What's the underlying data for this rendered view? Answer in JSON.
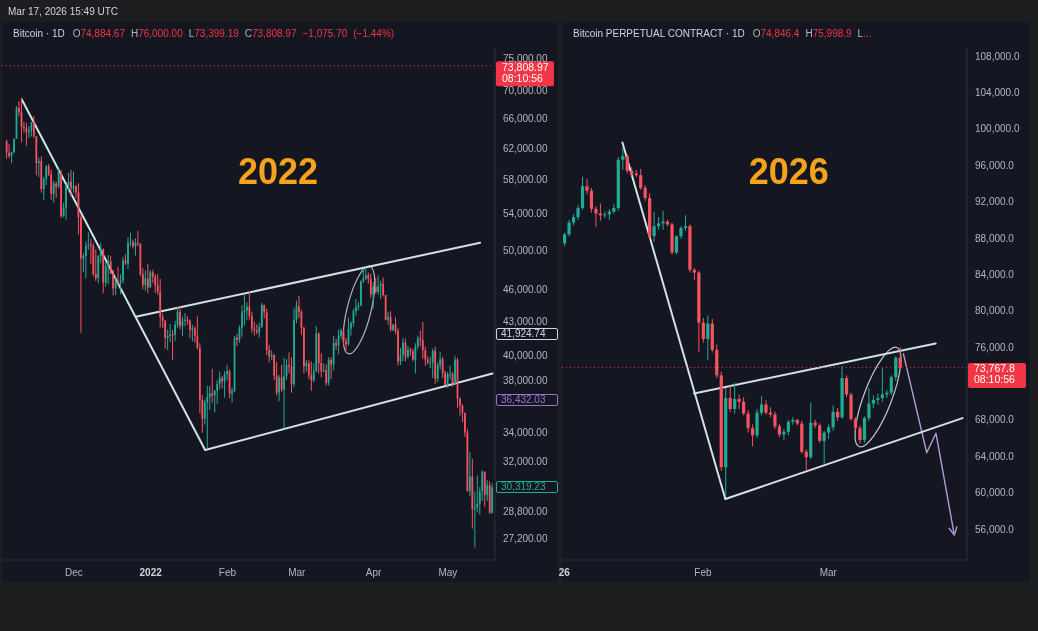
{
  "chart_data": [
    {
      "type": "candlestick",
      "title": "Bitcoin · 1D",
      "subtitle": "O74,884.67 H76,000.00 L73,399.19 C73,808.97 −1,075.70 (−1.44%)",
      "x": [
        "2021-11-04",
        "2021-11-05",
        "2021-11-06",
        "2021-11-07",
        "2021-11-08",
        "2021-11-09",
        "2021-11-10",
        "2021-11-11",
        "2021-11-12",
        "2021-11-13",
        "2021-11-14",
        "2021-11-15",
        "2021-11-16",
        "2021-11-17",
        "2021-11-18",
        "2021-11-19",
        "2021-11-20",
        "2021-11-21",
        "2021-11-22",
        "2021-11-23",
        "2021-11-24",
        "2021-11-25",
        "2021-11-26",
        "2021-11-27",
        "2021-11-28",
        "2021-11-29",
        "2021-11-30",
        "2021-12-01",
        "2021-12-02",
        "2021-12-03",
        "2021-12-04",
        "2021-12-05",
        "2021-12-06",
        "2021-12-07",
        "2021-12-08",
        "2021-12-09",
        "2021-12-10",
        "2021-12-11",
        "2021-12-12",
        "2021-12-13",
        "2021-12-14",
        "2021-12-15",
        "2021-12-16",
        "2021-12-17",
        "2021-12-18",
        "2021-12-19",
        "2021-12-20",
        "2021-12-21",
        "2021-12-22",
        "2021-12-23",
        "2021-12-24",
        "2021-12-25",
        "2021-12-26",
        "2021-12-27",
        "2021-12-28",
        "2021-12-29",
        "2021-12-30",
        "2021-12-31",
        "2022-01-01",
        "2022-01-02",
        "2022-01-03",
        "2022-01-04",
        "2022-01-05",
        "2022-01-06",
        "2022-01-07",
        "2022-01-08",
        "2022-01-09",
        "2022-01-10",
        "2022-01-11",
        "2022-01-12",
        "2022-01-13",
        "2022-01-14",
        "2022-01-15",
        "2022-01-16",
        "2022-01-17",
        "2022-01-18",
        "2022-01-19",
        "2022-01-20",
        "2022-01-21",
        "2022-01-22",
        "2022-01-23",
        "2022-01-24",
        "2022-01-25",
        "2022-01-26",
        "2022-01-27",
        "2022-01-28",
        "2022-01-29",
        "2022-01-30",
        "2022-01-31",
        "2022-02-01",
        "2022-02-02",
        "2022-02-03",
        "2022-02-04",
        "2022-02-05",
        "2022-02-06",
        "2022-02-07",
        "2022-02-08",
        "2022-02-09",
        "2022-02-10",
        "2022-02-11",
        "2022-02-12",
        "2022-02-13",
        "2022-02-14",
        "2022-02-15",
        "2022-02-16",
        "2022-02-17",
        "2022-02-18",
        "2022-02-19",
        "2022-02-20",
        "2022-02-21",
        "2022-02-22",
        "2022-02-23",
        "2022-02-24",
        "2022-02-25",
        "2022-02-26",
        "2022-02-27",
        "2022-02-28",
        "2022-03-01",
        "2022-03-02",
        "2022-03-03",
        "2022-03-04",
        "2022-03-05",
        "2022-03-06",
        "2022-03-07",
        "2022-03-08",
        "2022-03-09",
        "2022-03-10",
        "2022-03-11",
        "2022-03-12",
        "2022-03-13",
        "2022-03-14",
        "2022-03-15",
        "2022-03-16",
        "2022-03-17",
        "2022-03-18",
        "2022-03-19",
        "2022-03-20",
        "2022-03-21",
        "2022-03-22",
        "2022-03-23",
        "2022-03-24",
        "2022-03-25",
        "2022-03-26",
        "2022-03-27",
        "2022-03-28",
        "2022-03-29",
        "2022-03-30",
        "2022-03-31",
        "2022-04-01",
        "2022-04-02",
        "2022-04-03",
        "2022-04-04",
        "2022-04-05",
        "2022-04-06",
        "2022-04-07",
        "2022-04-08",
        "2022-04-09",
        "2022-04-10",
        "2022-04-11",
        "2022-04-12",
        "2022-04-13",
        "2022-04-14",
        "2022-04-15",
        "2022-04-16",
        "2022-04-17",
        "2022-04-18",
        "2022-04-19",
        "2022-04-20",
        "2022-04-21",
        "2022-04-22",
        "2022-04-23",
        "2022-04-24",
        "2022-04-25",
        "2022-04-26",
        "2022-04-27",
        "2022-04-28",
        "2022-04-29",
        "2022-04-30",
        "2022-05-01",
        "2022-05-02",
        "2022-05-03",
        "2022-05-04",
        "2022-05-05",
        "2022-05-06",
        "2022-05-07",
        "2022-05-08",
        "2022-05-09",
        "2022-05-10",
        "2022-05-11",
        "2022-05-12",
        "2022-05-13",
        "2022-05-14",
        "2022-05-15",
        "2022-05-16",
        "2022-05-17",
        "2022-05-18",
        "2022-05-19"
      ],
      "ohlc": [
        [
          62930,
          63120,
          60680,
          61440
        ],
        [
          61440,
          62600,
          60720,
          61010
        ],
        [
          61010,
          61600,
          60100,
          61530
        ],
        [
          61530,
          63300,
          61320,
          63270
        ],
        [
          63270,
          67790,
          63270,
          67530
        ],
        [
          67530,
          68530,
          66380,
          66940
        ],
        [
          66940,
          69000,
          62820,
          64880
        ],
        [
          64880,
          65600,
          64100,
          64780
        ],
        [
          64780,
          65460,
          62330,
          64150
        ],
        [
          64150,
          64990,
          63360,
          64380
        ],
        [
          64380,
          65550,
          63580,
          65500
        ],
        [
          65500,
          66400,
          63400,
          63600
        ],
        [
          63600,
          63600,
          58570,
          60110
        ],
        [
          60110,
          60830,
          58370,
          60360
        ],
        [
          60360,
          60950,
          56470,
          56900
        ],
        [
          56900,
          58360,
          55600,
          58100
        ],
        [
          58100,
          59850,
          57350,
          59700
        ],
        [
          59700,
          60000,
          58480,
          58700
        ],
        [
          58700,
          59270,
          55610,
          56300
        ],
        [
          56300,
          57860,
          55300,
          57570
        ],
        [
          57570,
          57800,
          55840,
          57180
        ],
        [
          57180,
          59400,
          57000,
          58960
        ],
        [
          58960,
          59200,
          53500,
          53730
        ],
        [
          53730,
          55280,
          53620,
          54720
        ],
        [
          54720,
          57440,
          53330,
          57270
        ],
        [
          57270,
          58870,
          56660,
          57810
        ],
        [
          57810,
          59250,
          56000,
          56990
        ],
        [
          56990,
          59050,
          56460,
          57230
        ],
        [
          57230,
          57380,
          55840,
          56510
        ],
        [
          56510,
          57600,
          51680,
          53600
        ],
        [
          53600,
          53860,
          42000,
          49150
        ],
        [
          49150,
          49700,
          47730,
          49400
        ],
        [
          49400,
          50940,
          47100,
          50440
        ],
        [
          50440,
          51940,
          50040,
          50590
        ],
        [
          50590,
          51200,
          48600,
          50470
        ],
        [
          50470,
          50800,
          47320,
          47550
        ],
        [
          47550,
          50100,
          46850,
          47140
        ],
        [
          47140,
          49490,
          46600,
          49390
        ],
        [
          49390,
          50800,
          48650,
          50100
        ],
        [
          50100,
          50200,
          45670,
          46700
        ],
        [
          46700,
          48700,
          46300,
          48340
        ],
        [
          48340,
          49500,
          46550,
          48860
        ],
        [
          48860,
          49430,
          47530,
          47630
        ],
        [
          47630,
          47990,
          45460,
          46130
        ],
        [
          46130,
          47370,
          45500,
          46830
        ],
        [
          46830,
          48300,
          46400,
          46680
        ],
        [
          46680,
          47540,
          45560,
          46910
        ],
        [
          46910,
          49330,
          46630,
          48940
        ],
        [
          48940,
          49580,
          48450,
          48630
        ],
        [
          48630,
          51380,
          48050,
          50820
        ],
        [
          50820,
          51880,
          50420,
          50850
        ],
        [
          50850,
          51160,
          50170,
          50430
        ],
        [
          50430,
          51280,
          49420,
          50800
        ],
        [
          50800,
          52090,
          50450,
          50720
        ],
        [
          50720,
          50720,
          47310,
          47540
        ],
        [
          47540,
          48140,
          46060,
          46460
        ],
        [
          46460,
          47900,
          45900,
          47120
        ],
        [
          47120,
          48550,
          45680,
          46220
        ],
        [
          46220,
          47950,
          46200,
          47720
        ],
        [
          47720,
          47990,
          46650,
          47290
        ],
        [
          47290,
          47570,
          45700,
          46430
        ],
        [
          46430,
          47510,
          45500,
          45830
        ],
        [
          45830,
          47070,
          42500,
          43430
        ],
        [
          43430,
          43750,
          42430,
          43080
        ],
        [
          43080,
          43150,
          40610,
          41560
        ],
        [
          41560,
          42300,
          40500,
          41730
        ],
        [
          41730,
          42790,
          41200,
          41860
        ],
        [
          41860,
          42250,
          39650,
          41820
        ],
        [
          41820,
          43100,
          41270,
          42740
        ],
        [
          42740,
          44350,
          42450,
          43920
        ],
        [
          43920,
          44460,
          42310,
          42590
        ],
        [
          42590,
          43450,
          41730,
          43100
        ],
        [
          43100,
          43800,
          42570,
          43180
        ],
        [
          43180,
          43480,
          42700,
          43110
        ],
        [
          43110,
          43200,
          41540,
          42250
        ],
        [
          42250,
          42700,
          41250,
          42380
        ],
        [
          42380,
          42580,
          41140,
          41740
        ],
        [
          41740,
          43500,
          40570,
          40680
        ],
        [
          40680,
          41100,
          35440,
          36450
        ],
        [
          36450,
          36840,
          34010,
          35030
        ],
        [
          35030,
          36500,
          34600,
          36280
        ],
        [
          36280,
          37550,
          32920,
          36680
        ],
        [
          36680,
          37550,
          35700,
          36960
        ],
        [
          36960,
          38920,
          36230,
          36810
        ],
        [
          36810,
          37230,
          35510,
          37160
        ],
        [
          37160,
          38000,
          36150,
          37710
        ],
        [
          37710,
          38720,
          37300,
          38170
        ],
        [
          38170,
          38360,
          37350,
          37920
        ],
        [
          37920,
          38740,
          36630,
          38480
        ],
        [
          38480,
          39270,
          38000,
          38740
        ],
        [
          38740,
          38860,
          36590,
          36950
        ],
        [
          36950,
          37390,
          36250,
          37150
        ],
        [
          37150,
          41730,
          37050,
          41570
        ],
        [
          41570,
          41910,
          40850,
          41380
        ],
        [
          41380,
          42650,
          41120,
          42410
        ],
        [
          42410,
          44500,
          41650,
          43840
        ],
        [
          43840,
          45490,
          42670,
          44040
        ],
        [
          44040,
          44800,
          43120,
          44380
        ],
        [
          44380,
          45820,
          43190,
          43510
        ],
        [
          43510,
          43920,
          42000,
          42390
        ],
        [
          42390,
          43000,
          41750,
          42210
        ],
        [
          42210,
          42760,
          41860,
          42050
        ],
        [
          42050,
          42880,
          41570,
          42540
        ],
        [
          42540,
          44750,
          42430,
          44540
        ],
        [
          44540,
          44580,
          43310,
          43870
        ],
        [
          43870,
          44200,
          40070,
          40510
        ],
        [
          40510,
          40950,
          39450,
          39970
        ],
        [
          39970,
          40480,
          39640,
          40080
        ],
        [
          40080,
          40150,
          38020,
          38370
        ],
        [
          38370,
          39490,
          36800,
          37020
        ],
        [
          37020,
          38430,
          36350,
          38240
        ],
        [
          38240,
          39270,
          37040,
          37250
        ],
        [
          37250,
          39840,
          34320,
          38330
        ],
        [
          38330,
          39730,
          38020,
          39220
        ],
        [
          39220,
          40300,
          38580,
          39110
        ],
        [
          39110,
          39880,
          37000,
          37700
        ],
        [
          37700,
          44230,
          37450,
          43160
        ],
        [
          43160,
          44950,
          42850,
          44420
        ],
        [
          44420,
          45400,
          43330,
          43890
        ],
        [
          43890,
          44100,
          41830,
          42450
        ],
        [
          42450,
          42530,
          38550,
          39150
        ],
        [
          39150,
          39640,
          38700,
          39400
        ],
        [
          39400,
          39690,
          38090,
          38420
        ],
        [
          38420,
          39550,
          37160,
          37990
        ],
        [
          37990,
          39360,
          37860,
          38730
        ],
        [
          38730,
          42590,
          38660,
          41940
        ],
        [
          41940,
          42050,
          38540,
          39420
        ],
        [
          39420,
          40240,
          38220,
          38730
        ],
        [
          38730,
          39360,
          38660,
          38810
        ],
        [
          38810,
          39310,
          37580,
          37780
        ],
        [
          37780,
          39920,
          37580,
          39670
        ],
        [
          39670,
          39870,
          38100,
          39280
        ],
        [
          39280,
          41720,
          38820,
          41110
        ],
        [
          41110,
          41480,
          40500,
          40920
        ],
        [
          40920,
          42330,
          40140,
          41750
        ],
        [
          41750,
          42400,
          41500,
          42200
        ],
        [
          42200,
          42300,
          40920,
          41260
        ],
        [
          41260,
          41540,
          40500,
          41000
        ],
        [
          41000,
          43360,
          40880,
          42360
        ],
        [
          42360,
          43020,
          41750,
          42880
        ],
        [
          42880,
          44220,
          42570,
          43960
        ],
        [
          43960,
          45100,
          43560,
          44350
        ],
        [
          44350,
          44800,
          44070,
          44500
        ],
        [
          44500,
          46920,
          44420,
          46820
        ],
        [
          46820,
          48100,
          46660,
          47130
        ],
        [
          47130,
          48190,
          46950,
          47430
        ],
        [
          47430,
          47700,
          46600,
          47060
        ],
        [
          47060,
          47600,
          45200,
          45530
        ],
        [
          45530,
          46720,
          44200,
          46280
        ],
        [
          46280,
          47210,
          45620,
          45810
        ],
        [
          45810,
          47440,
          45530,
          46410
        ],
        [
          46410,
          46880,
          45120,
          46580
        ],
        [
          46580,
          47200,
          45350,
          45500
        ],
        [
          45500,
          45500,
          43120,
          43170
        ],
        [
          43170,
          43900,
          42730,
          43440
        ],
        [
          43440,
          43970,
          42110,
          42250
        ],
        [
          42250,
          42790,
          42120,
          42750
        ],
        [
          42750,
          43420,
          41870,
          42150
        ],
        [
          42150,
          42410,
          39200,
          39530
        ],
        [
          39530,
          40690,
          39250,
          40080
        ],
        [
          40080,
          41560,
          39560,
          41150
        ],
        [
          41150,
          41500,
          39550,
          39940
        ],
        [
          39940,
          40870,
          39770,
          40550
        ],
        [
          40550,
          40710,
          40020,
          40380
        ],
        [
          40380,
          40600,
          39550,
          39680
        ],
        [
          39680,
          41100,
          38540,
          40800
        ],
        [
          40800,
          41760,
          40570,
          41500
        ],
        [
          41500,
          42200,
          40820,
          41360
        ],
        [
          41360,
          42980,
          39750,
          40480
        ],
        [
          40480,
          40800,
          39180,
          39710
        ],
        [
          39710,
          39980,
          39290,
          39450
        ],
        [
          39450,
          39930,
          39000,
          39450
        ],
        [
          39450,
          40620,
          38200,
          40430
        ],
        [
          40430,
          40800,
          37700,
          38110
        ],
        [
          38110,
          39470,
          37870,
          39240
        ],
        [
          39240,
          40370,
          38880,
          39740
        ],
        [
          39740,
          39920,
          38180,
          38600
        ],
        [
          38600,
          38800,
          37580,
          37630
        ],
        [
          37630,
          38680,
          37390,
          38470
        ],
        [
          38470,
          39170,
          38060,
          38520
        ],
        [
          38520,
          38650,
          37500,
          37720
        ],
        [
          37720,
          40020,
          37670,
          39690
        ],
        [
          39690,
          39850,
          35860,
          36550
        ],
        [
          36550,
          36660,
          35260,
          36010
        ],
        [
          36010,
          36140,
          34790,
          35470
        ],
        [
          35470,
          35500,
          33710,
          34040
        ],
        [
          34040,
          34300,
          30030,
          30080
        ],
        [
          30080,
          32660,
          29730,
          31000
        ],
        [
          31000,
          32190,
          27780,
          28940
        ],
        [
          28940,
          30030,
          26700,
          29030
        ],
        [
          29030,
          31080,
          28750,
          29290
        ],
        [
          29290,
          30340,
          28600,
          30080
        ],
        [
          30080,
          31420,
          29470,
          31330
        ],
        [
          31330,
          31330,
          29090,
          29830
        ],
        [
          29830,
          30780,
          29450,
          30450
        ],
        [
          30450,
          30700,
          28660,
          28720
        ],
        [
          28720,
          30550,
          28690,
          30319.23
        ]
      ],
      "series": [
        {
          "type": "line",
          "x": [
            "2021-11-10",
            "2022-01-23"
          ],
          "values": [
            68750,
            32800
          ],
          "color": "#cfe3e5"
        },
        {
          "type": "line",
          "x": [
            "2022-01-23",
            "2022-05-19"
          ],
          "values": [
            32800,
            38550
          ],
          "color": "#cfe3e5"
        },
        {
          "type": "line",
          "x": [
            "2021-12-26",
            "2022-05-14"
          ],
          "values": [
            43450,
            50800
          ],
          "color": "#cfe3e5"
        }
      ],
      "xlim": [
        "2021-11-02",
        "2022-05-20"
      ],
      "xticks": [
        {
          "value": "2021-12-01",
          "label": "Dec"
        },
        {
          "value": "2022-01-01",
          "label": "2022"
        },
        {
          "value": "2022-02-01",
          "label": "Feb"
        },
        {
          "value": "2022-03-01",
          "label": "Mar"
        },
        {
          "value": "2022-04-01",
          "label": "Apr"
        },
        {
          "value": "2022-05-01",
          "label": "May"
        }
      ],
      "ylim": [
        26000,
        76800
      ],
      "log": true,
      "yticks": [
        {
          "value": 75000,
          "label": "75,000.00"
        },
        {
          "value": 70000,
          "label": "70,000.00"
        },
        {
          "value": 66000,
          "label": "66,000.00"
        },
        {
          "value": 62000,
          "label": "62,000.00"
        },
        {
          "value": 58000,
          "label": "58,000.00"
        },
        {
          "value": 54000,
          "label": "54,000.00"
        },
        {
          "value": 50000,
          "label": "50,000.00"
        },
        {
          "value": 46000,
          "label": "46,000.00"
        },
        {
          "value": 43000,
          "label": "43,000.00"
        },
        {
          "value": 40000,
          "label": "40,000.00"
        },
        {
          "value": 38000,
          "label": "38,000.00"
        },
        {
          "value": 34000,
          "label": "34,000.00"
        },
        {
          "value": 32000,
          "label": "32,000.00"
        },
        {
          "value": 28800,
          "label": "28,800.00"
        },
        {
          "value": 27200,
          "label": "27,200.00"
        }
      ],
      "ref_lines": [
        {
          "axis": "y",
          "value": 73808.97,
          "label": "73,808.97\n08:10:56",
          "color": "#f23645",
          "line_style": "dotted"
        }
      ],
      "annotations": [
        "Mar 17, 2026 15:49 UTC",
        "2022",
        "41,924.74",
        "36,432.03",
        "30,319.23"
      ]
    },
    {
      "type": "candlestick",
      "title": "Bitcoin PERPETUAL CONTRACT · 1D",
      "subtitle": "O74,846.4 H75,998.9 L...",
      "x": [
        "2026-01-01",
        "2026-01-02",
        "2026-01-03",
        "2026-01-04",
        "2026-01-05",
        "2026-01-06",
        "2026-01-07",
        "2026-01-08",
        "2026-01-09",
        "2026-01-10",
        "2026-01-11",
        "2026-01-12",
        "2026-01-13",
        "2026-01-14",
        "2026-01-15",
        "2026-01-16",
        "2026-01-17",
        "2026-01-18",
        "2026-01-19",
        "2026-01-20",
        "2026-01-21",
        "2026-01-22",
        "2026-01-23",
        "2026-01-24",
        "2026-01-25",
        "2026-01-26",
        "2026-01-27",
        "2026-01-28",
        "2026-01-29",
        "2026-01-30",
        "2026-01-31",
        "2026-02-01",
        "2026-02-02",
        "2026-02-03",
        "2026-02-04",
        "2026-02-05",
        "2026-02-06",
        "2026-02-07",
        "2026-02-08",
        "2026-02-09",
        "2026-02-10",
        "2026-02-11",
        "2026-02-12",
        "2026-02-13",
        "2026-02-14",
        "2026-02-15",
        "2026-02-16",
        "2026-02-17",
        "2026-02-18",
        "2026-02-19",
        "2026-02-20",
        "2026-02-21",
        "2026-02-22",
        "2026-02-23",
        "2026-02-24",
        "2026-02-25",
        "2026-02-26",
        "2026-02-27",
        "2026-02-28",
        "2026-03-01",
        "2026-03-02",
        "2026-03-03",
        "2026-03-04",
        "2026-03-05",
        "2026-03-06",
        "2026-03-07",
        "2026-03-08",
        "2026-03-09",
        "2026-03-10",
        "2026-03-11",
        "2026-03-12",
        "2026-03-13",
        "2026-03-14",
        "2026-03-15",
        "2026-03-16",
        "2026-03-17"
      ],
      "ohlc": [
        [
          87400,
          88600,
          87100,
          88400
        ],
        [
          88400,
          90000,
          88200,
          89700
        ],
        [
          89700,
          90600,
          89400,
          90300
        ],
        [
          90300,
          91600,
          90000,
          91300
        ],
        [
          91300,
          94700,
          91100,
          93700
        ],
        [
          93700,
          94500,
          92800,
          93200
        ],
        [
          93200,
          93500,
          90800,
          91200
        ],
        [
          91200,
          91500,
          89200,
          90700
        ],
        [
          90700,
          91800,
          89900,
          90500
        ],
        [
          90500,
          90900,
          90200,
          90600
        ],
        [
          90600,
          91200,
          90000,
          90900
        ],
        [
          90900,
          91700,
          90700,
          91300
        ],
        [
          91300,
          96900,
          91000,
          96600
        ],
        [
          96600,
          97900,
          95500,
          97000
        ],
        [
          97000,
          97200,
          95100,
          95400
        ],
        [
          95400,
          95800,
          94800,
          95100
        ],
        [
          95100,
          95500,
          94700,
          94900
        ],
        [
          94900,
          95600,
          93300,
          93500
        ],
        [
          93500,
          93800,
          92100,
          92400
        ],
        [
          92400,
          92900,
          87800,
          88200
        ],
        [
          88200,
          90900,
          87600,
          89300
        ],
        [
          89300,
          90300,
          88900,
          89600
        ],
        [
          89600,
          91000,
          88900,
          89800
        ],
        [
          89800,
          90000,
          89300,
          89500
        ],
        [
          89500,
          89700,
          86200,
          86400
        ],
        [
          86400,
          88300,
          86200,
          88200
        ],
        [
          88200,
          89300,
          87900,
          89100
        ],
        [
          89100,
          90500,
          88800,
          89300
        ],
        [
          89300,
          89500,
          84200,
          84500
        ],
        [
          84500,
          84700,
          83400,
          84200
        ],
        [
          84200,
          84400,
          75500,
          78700
        ],
        [
          78700,
          79200,
          76500,
          76900
        ],
        [
          76900,
          79500,
          74600,
          78600
        ],
        [
          78600,
          79100,
          75400,
          75700
        ],
        [
          75700,
          76300,
          72600,
          72900
        ],
        [
          72900,
          73300,
          62400,
          62800
        ],
        [
          62800,
          71500,
          59600,
          70400
        ],
        [
          70400,
          71900,
          68900,
          69200
        ],
        [
          69200,
          72100,
          68700,
          70300
        ],
        [
          70300,
          70800,
          69200,
          70000
        ],
        [
          70000,
          70500,
          68500,
          68700
        ],
        [
          68700,
          69100,
          66600,
          67100
        ],
        [
          67100,
          67500,
          65100,
          66300
        ],
        [
          66300,
          69200,
          66000,
          68800
        ],
        [
          68800,
          70600,
          68500,
          69700
        ],
        [
          69700,
          70200,
          68600,
          68800
        ],
        [
          68800,
          69400,
          68300,
          68600
        ],
        [
          68600,
          68900,
          67000,
          67300
        ],
        [
          67300,
          67600,
          66100,
          66400
        ],
        [
          66400,
          67000,
          65800,
          66700
        ],
        [
          66700,
          68000,
          66300,
          67800
        ],
        [
          67800,
          68300,
          67500,
          68000
        ],
        [
          68000,
          68100,
          67400,
          67600
        ],
        [
          67600,
          67900,
          64300,
          64500
        ],
        [
          64500,
          64800,
          62400,
          63900
        ],
        [
          63900,
          69900,
          63700,
          67700
        ],
        [
          67700,
          68000,
          67100,
          67400
        ],
        [
          67400,
          67600,
          65500,
          65700
        ],
        [
          65700,
          66800,
          63200,
          66600
        ],
        [
          66600,
          67500,
          65900,
          67200
        ],
        [
          67200,
          69600,
          66800,
          68900
        ],
        [
          68900,
          69300,
          67900,
          68300
        ],
        [
          68300,
          73900,
          68100,
          72600
        ],
        [
          72600,
          72900,
          70500,
          70800
        ],
        [
          70800,
          71000,
          67900,
          68100
        ],
        [
          68100,
          68300,
          66900,
          67100
        ],
        [
          67100,
          67400,
          65400,
          65800
        ],
        [
          65800,
          68400,
          65500,
          68200
        ],
        [
          68200,
          71500,
          67900,
          69800
        ],
        [
          69800,
          70700,
          69300,
          70200
        ],
        [
          70200,
          70900,
          69700,
          70400
        ],
        [
          70400,
          73700,
          70000,
          70800
        ],
        [
          70800,
          71300,
          70400,
          71000
        ],
        [
          71000,
          72900,
          70700,
          72700
        ],
        [
          72700,
          75000,
          72300,
          74846.4
        ],
        [
          74846.4,
          75998.9,
          73500,
          73767.8
        ]
      ],
      "series": [
        {
          "type": "line",
          "x": [
            "2026-01-14",
            "2026-02-06"
          ],
          "values": [
            98500,
            59300
          ],
          "color": "#cfe3e5"
        },
        {
          "type": "line",
          "x": [
            "2026-02-06",
            "2026-03-31"
          ],
          "values": [
            59300,
            68200
          ],
          "color": "#cfe3e5"
        },
        {
          "type": "line",
          "x": [
            "2026-01-30",
            "2026-03-25"
          ],
          "values": [
            70900,
            76400
          ],
          "color": "#cfe3e5"
        }
      ],
      "xlim": [
        "2025-12-31T12:00",
        "2026-04-01"
      ],
      "xticks": [
        {
          "value": "2026-01-01",
          "label": "26"
        },
        {
          "value": "2026-02-01",
          "label": "Feb"
        },
        {
          "value": "2026-03-01",
          "label": "Mar"
        }
      ],
      "ylim": [
        52600,
        109000
      ],
      "yticks": [
        {
          "value": 108000,
          "label": "108,000.0"
        },
        {
          "value": 104000,
          "label": "104,000.0"
        },
        {
          "value": 100000,
          "label": "100,000.0"
        },
        {
          "value": 96000,
          "label": "96,000.0"
        },
        {
          "value": 92000,
          "label": "92,000.0"
        },
        {
          "value": 88000,
          "label": "88,000.0"
        },
        {
          "value": 84000,
          "label": "84,000.0"
        },
        {
          "value": 80000,
          "label": "80,000.0"
        },
        {
          "value": 76000,
          "label": "76,000.0"
        },
        {
          "value": 68000,
          "label": "68,000.0"
        },
        {
          "value": 64000,
          "label": "64,000.0"
        },
        {
          "value": 60000,
          "label": "60,000.0"
        },
        {
          "value": 56000,
          "label": "56,000.0"
        }
      ],
      "ref_lines": [
        {
          "axis": "y",
          "value": 73767.8,
          "label": "73,767.8\n08:10:56",
          "color": "#f23645",
          "line_style": "dotted"
        }
      ],
      "annotations": [
        "2026"
      ]
    }
  ]
}
